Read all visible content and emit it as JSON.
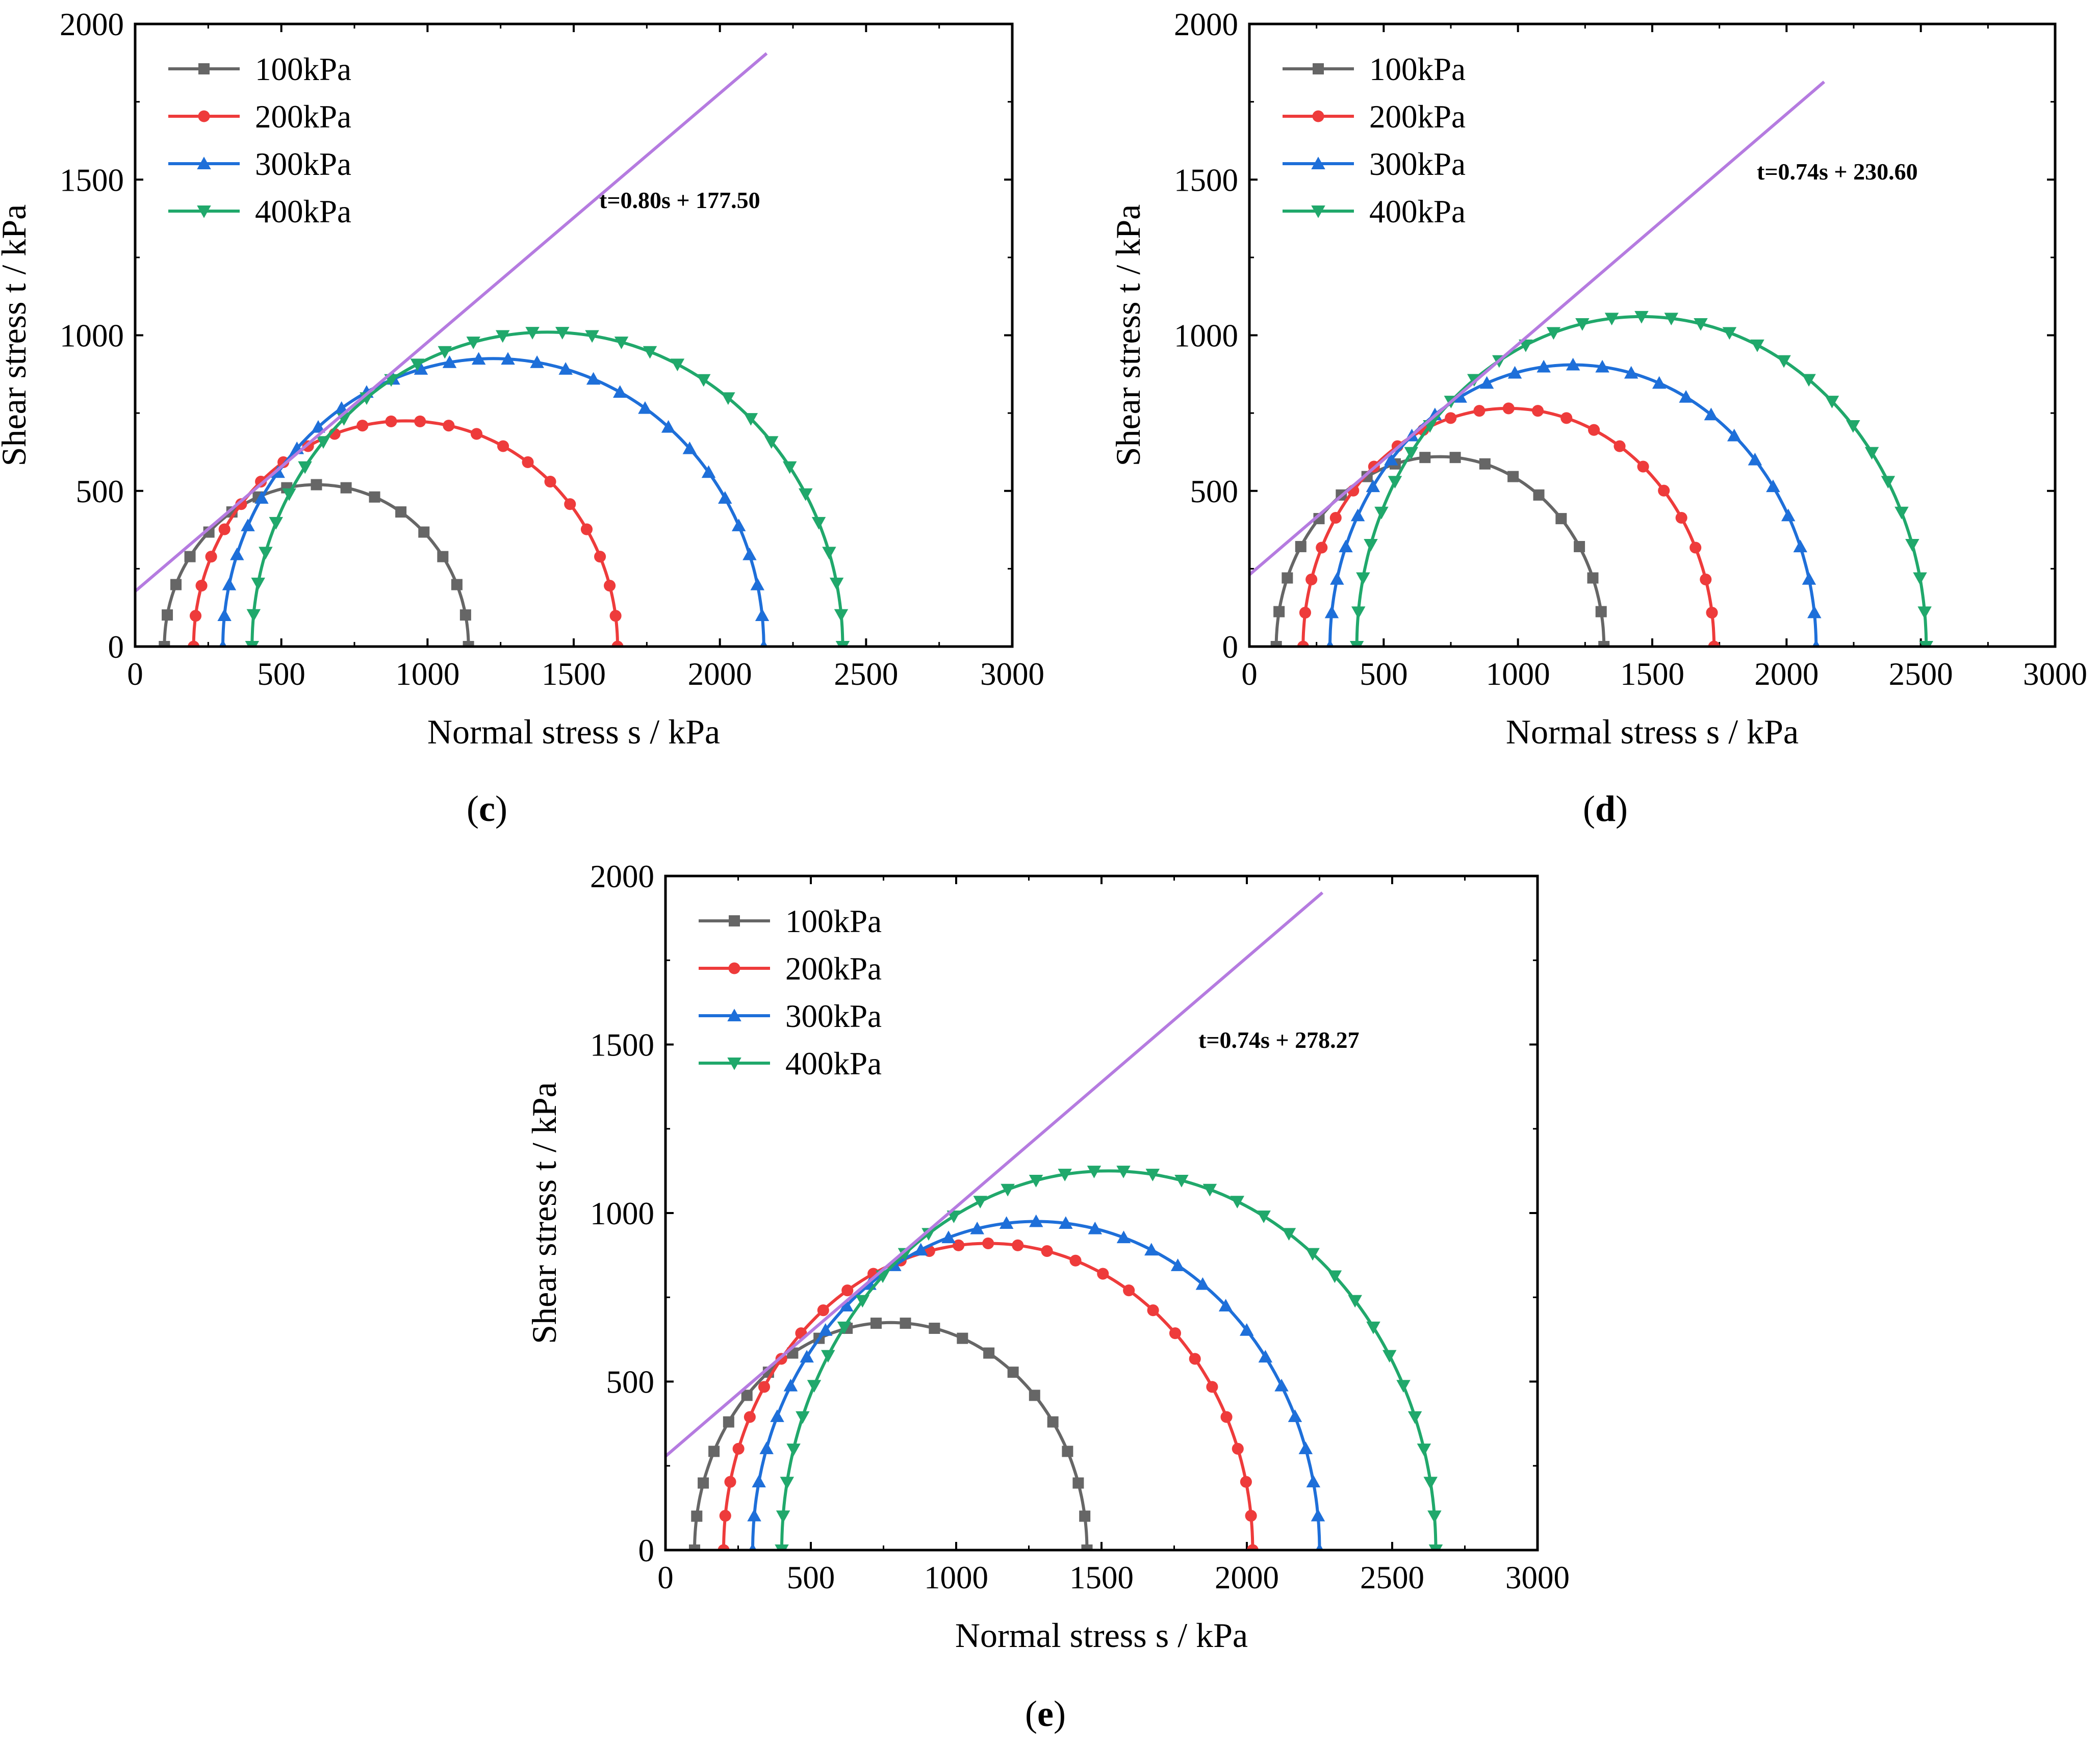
{
  "figure": {
    "series_colors": {
      "100kPa": "#666666",
      "200kPa": "#ee3b3b",
      "300kPa": "#1e6fd9",
      "400kPa": "#20a86b"
    },
    "envelope_color": "#b57be0",
    "series_markers": {
      "100kPa": "square",
      "200kPa": "circle",
      "300kPa": "triangle-up",
      "400kPa": "triangle-down"
    }
  },
  "chart_data": [
    {
      "panel": "c",
      "type": "line",
      "title": "",
      "xlabel": "Normal stress s  / kPa",
      "ylabel": "Shear stress t  / kPa",
      "xlim": [
        0,
        3000
      ],
      "ylim": [
        0,
        2000
      ],
      "xticks": [
        0,
        500,
        1000,
        1500,
        2000,
        2500,
        3000
      ],
      "yticks": [
        0,
        500,
        1000,
        1500,
        2000
      ],
      "legend": [
        "100kPa",
        "200kPa",
        "300kPa",
        "400kPa"
      ],
      "legend_position": "top-left",
      "series": [
        {
          "name": "100kPa",
          "circle": {
            "sigma3": 100,
            "sigma1": 1140
          }
        },
        {
          "name": "200kPa",
          "circle": {
            "sigma3": 200,
            "sigma1": 1650
          }
        },
        {
          "name": "300kPa",
          "circle": {
            "sigma3": 300,
            "sigma1": 2150
          }
        },
        {
          "name": "400kPa",
          "circle": {
            "sigma3": 400,
            "sigma1": 2420
          }
        }
      ],
      "envelope": {
        "slope": 0.8,
        "intercept": 177.5,
        "x_range": [
          0,
          2160
        ]
      },
      "equation": "t=0.80s + 177.50",
      "caption_label": "c"
    },
    {
      "panel": "d",
      "type": "line",
      "title": "",
      "xlabel": "Normal stress s  / kPa",
      "ylabel": "Shear stress t  / kPa",
      "xlim": [
        0,
        3000
      ],
      "ylim": [
        0,
        2000
      ],
      "xticks": [
        0,
        500,
        1000,
        1500,
        2000,
        2500,
        3000
      ],
      "yticks": [
        0,
        500,
        1000,
        1500,
        2000
      ],
      "legend": [
        "100kPa",
        "200kPa",
        "300kPa",
        "400kPa"
      ],
      "legend_position": "top-left",
      "series": [
        {
          "name": "100kPa",
          "circle": {
            "sigma3": 100,
            "sigma1": 1320
          }
        },
        {
          "name": "200kPa",
          "circle": {
            "sigma3": 200,
            "sigma1": 1730
          }
        },
        {
          "name": "300kPa",
          "circle": {
            "sigma3": 300,
            "sigma1": 2110
          }
        },
        {
          "name": "400kPa",
          "circle": {
            "sigma3": 400,
            "sigma1": 2520
          }
        }
      ],
      "envelope": {
        "slope": 0.74,
        "intercept": 230.6,
        "x_range": [
          0,
          2140
        ]
      },
      "equation": "t=0.74s + 230.60",
      "caption_label": "d"
    },
    {
      "panel": "e",
      "type": "line",
      "title": "",
      "xlabel": "Normal stress s  / kPa",
      "ylabel": "Shear stress t  / kPa",
      "xlim": [
        0,
        3000
      ],
      "ylim": [
        0,
        2000
      ],
      "xticks": [
        0,
        500,
        1000,
        1500,
        2000,
        2500,
        3000
      ],
      "yticks": [
        0,
        500,
        1000,
        1500,
        2000
      ],
      "legend": [
        "100kPa",
        "200kPa",
        "300kPa",
        "400kPa"
      ],
      "legend_position": "top-left",
      "series": [
        {
          "name": "100kPa",
          "circle": {
            "sigma3": 100,
            "sigma1": 1450
          }
        },
        {
          "name": "200kPa",
          "circle": {
            "sigma3": 200,
            "sigma1": 2020
          }
        },
        {
          "name": "300kPa",
          "circle": {
            "sigma3": 300,
            "sigma1": 2250
          }
        },
        {
          "name": "400kPa",
          "circle": {
            "sigma3": 400,
            "sigma1": 2650
          }
        }
      ],
      "envelope": {
        "slope": 0.74,
        "intercept": 278.27,
        "x_range": [
          0,
          2260
        ]
      },
      "equation": "t=0.74s + 278.27",
      "caption_label": "e"
    }
  ]
}
